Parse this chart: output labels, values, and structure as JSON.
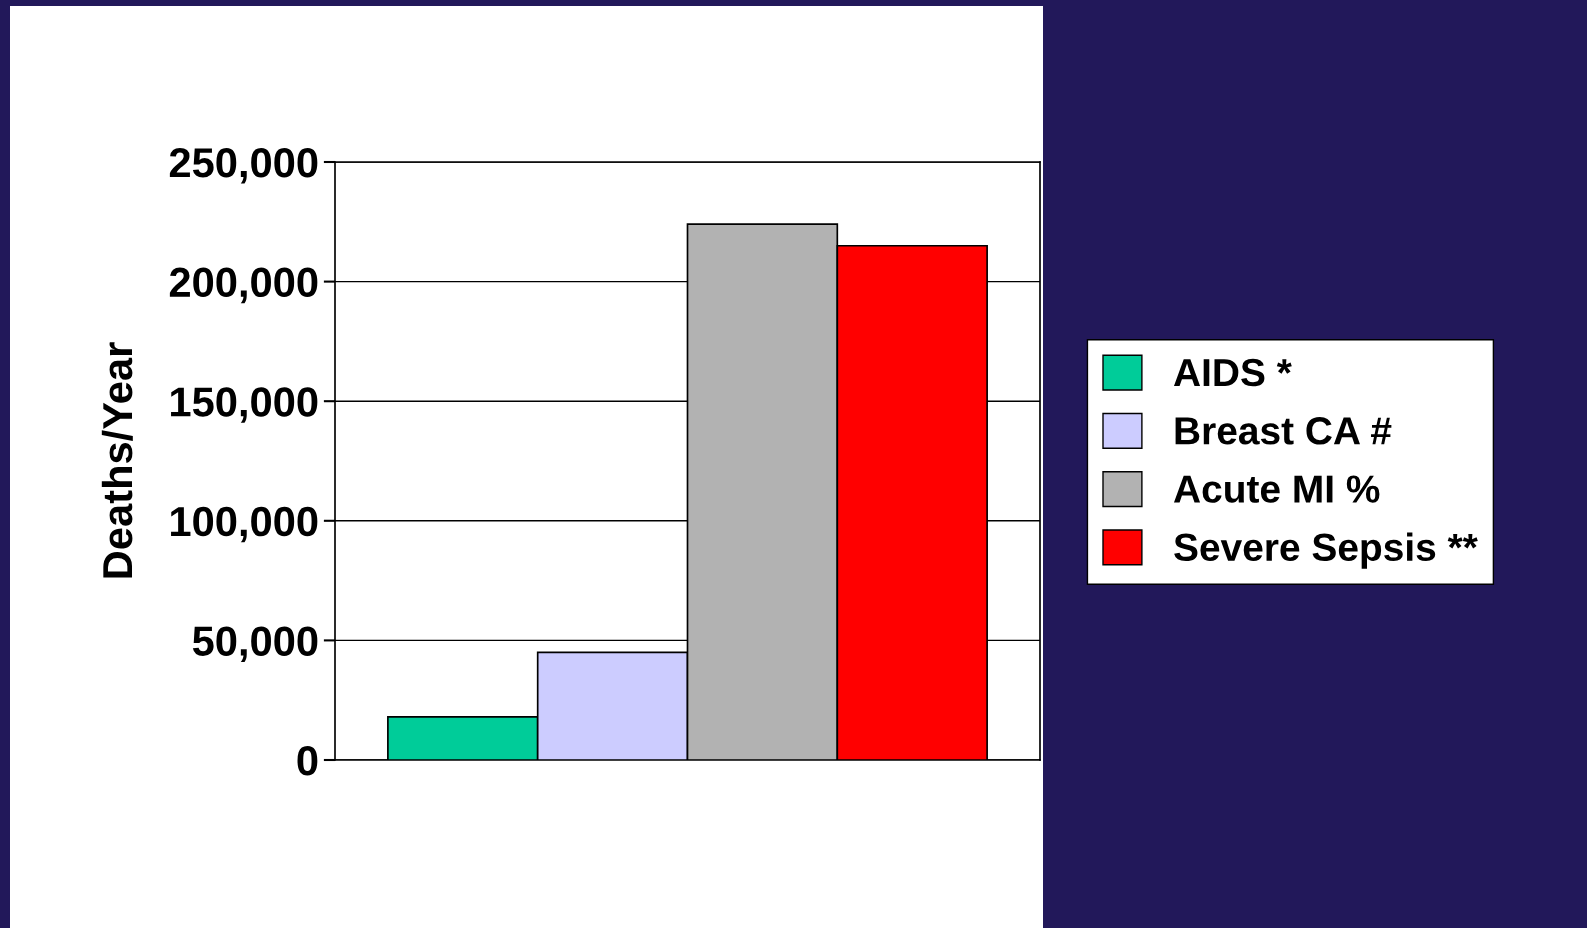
{
  "chart_data": {
    "type": "bar",
    "ylabel": "Deaths/Year",
    "categories": [
      null
    ],
    "series": [
      {
        "name": "AIDS *",
        "color": "#00cc99",
        "values": [
          18000
        ]
      },
      {
        "name": "Breast CA #",
        "color": "#ccccff",
        "values": [
          45000
        ]
      },
      {
        "name": "Acute MI %",
        "color": "#b2b2b2",
        "values": [
          224000
        ]
      },
      {
        "name": "Severe Sepsis **",
        "color": "#ff0000",
        "values": [
          215000
        ]
      }
    ],
    "ylim": [
      0,
      250000
    ],
    "yticks": [
      {
        "value": 0,
        "label": "0"
      },
      {
        "value": 50000,
        "label": "50,000"
      },
      {
        "value": 100000,
        "label": "100,000"
      },
      {
        "value": 150000,
        "label": "150,000"
      },
      {
        "value": 200000,
        "label": "200,000"
      },
      {
        "value": 250000,
        "label": "250,000"
      }
    ],
    "grid": "y",
    "legend": "right"
  }
}
